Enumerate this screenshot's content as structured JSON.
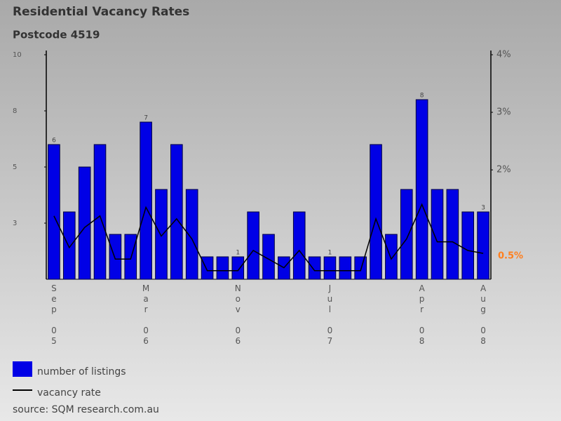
{
  "chart_data": {
    "type": "bar",
    "title": "Residential Vacancy Rates",
    "subtitle": "Postcode 4519",
    "source": "source: SQM research.com.au",
    "categories": [
      "Sep 05",
      null,
      null,
      null,
      null,
      null,
      "Mar 06",
      null,
      null,
      null,
      null,
      null,
      "Nov 06",
      null,
      null,
      null,
      null,
      null,
      "Jul 07",
      null,
      null,
      null,
      null,
      null,
      "Apr 08",
      null,
      null,
      null,
      "Aug 08"
    ],
    "series": [
      {
        "name": "number of listings",
        "type": "bar",
        "color": "#0000e6",
        "values": [
          6,
          3,
          5,
          6,
          2,
          2,
          7,
          4,
          6,
          4,
          1,
          1,
          1,
          3,
          2,
          1,
          3,
          1,
          1,
          1,
          1,
          6,
          2,
          4,
          8,
          4,
          4,
          3,
          3
        ],
        "value_labels": [
          "6",
          null,
          null,
          null,
          null,
          null,
          "7",
          null,
          null,
          null,
          null,
          null,
          "1",
          null,
          null,
          null,
          null,
          null,
          "1",
          null,
          null,
          null,
          null,
          null,
          "8",
          null,
          null,
          null,
          "3"
        ]
      },
      {
        "name": "vacancy rate",
        "type": "line",
        "axis": "y2",
        "color": "#000000",
        "values": [
          1.2,
          0.65,
          1.0,
          1.2,
          0.45,
          0.45,
          1.35,
          0.85,
          1.15,
          0.8,
          0.25,
          0.25,
          0.25,
          0.6,
          0.45,
          0.3,
          0.6,
          0.25,
          0.25,
          0.25,
          0.25,
          1.15,
          0.45,
          0.8,
          1.4,
          0.75,
          0.75,
          0.6,
          0.55
        ]
      }
    ],
    "ylim": [
      0,
      10
    ],
    "yticks": [
      10,
      {
        "value": 7.5,
        "label": "8"
      },
      5,
      {
        "value": 2.5,
        "label": "3"
      }
    ],
    "y2lim": [
      0.1,
      4
    ],
    "y2ticks": [
      {
        "value": 4,
        "label": "4%"
      },
      {
        "value": 3,
        "label": "3%"
      },
      {
        "value": 2,
        "label": "2%"
      }
    ],
    "annotation": {
      "text": "0.5%",
      "value": 0.5,
      "axis": "y2",
      "color": "#ff7f1e"
    }
  }
}
